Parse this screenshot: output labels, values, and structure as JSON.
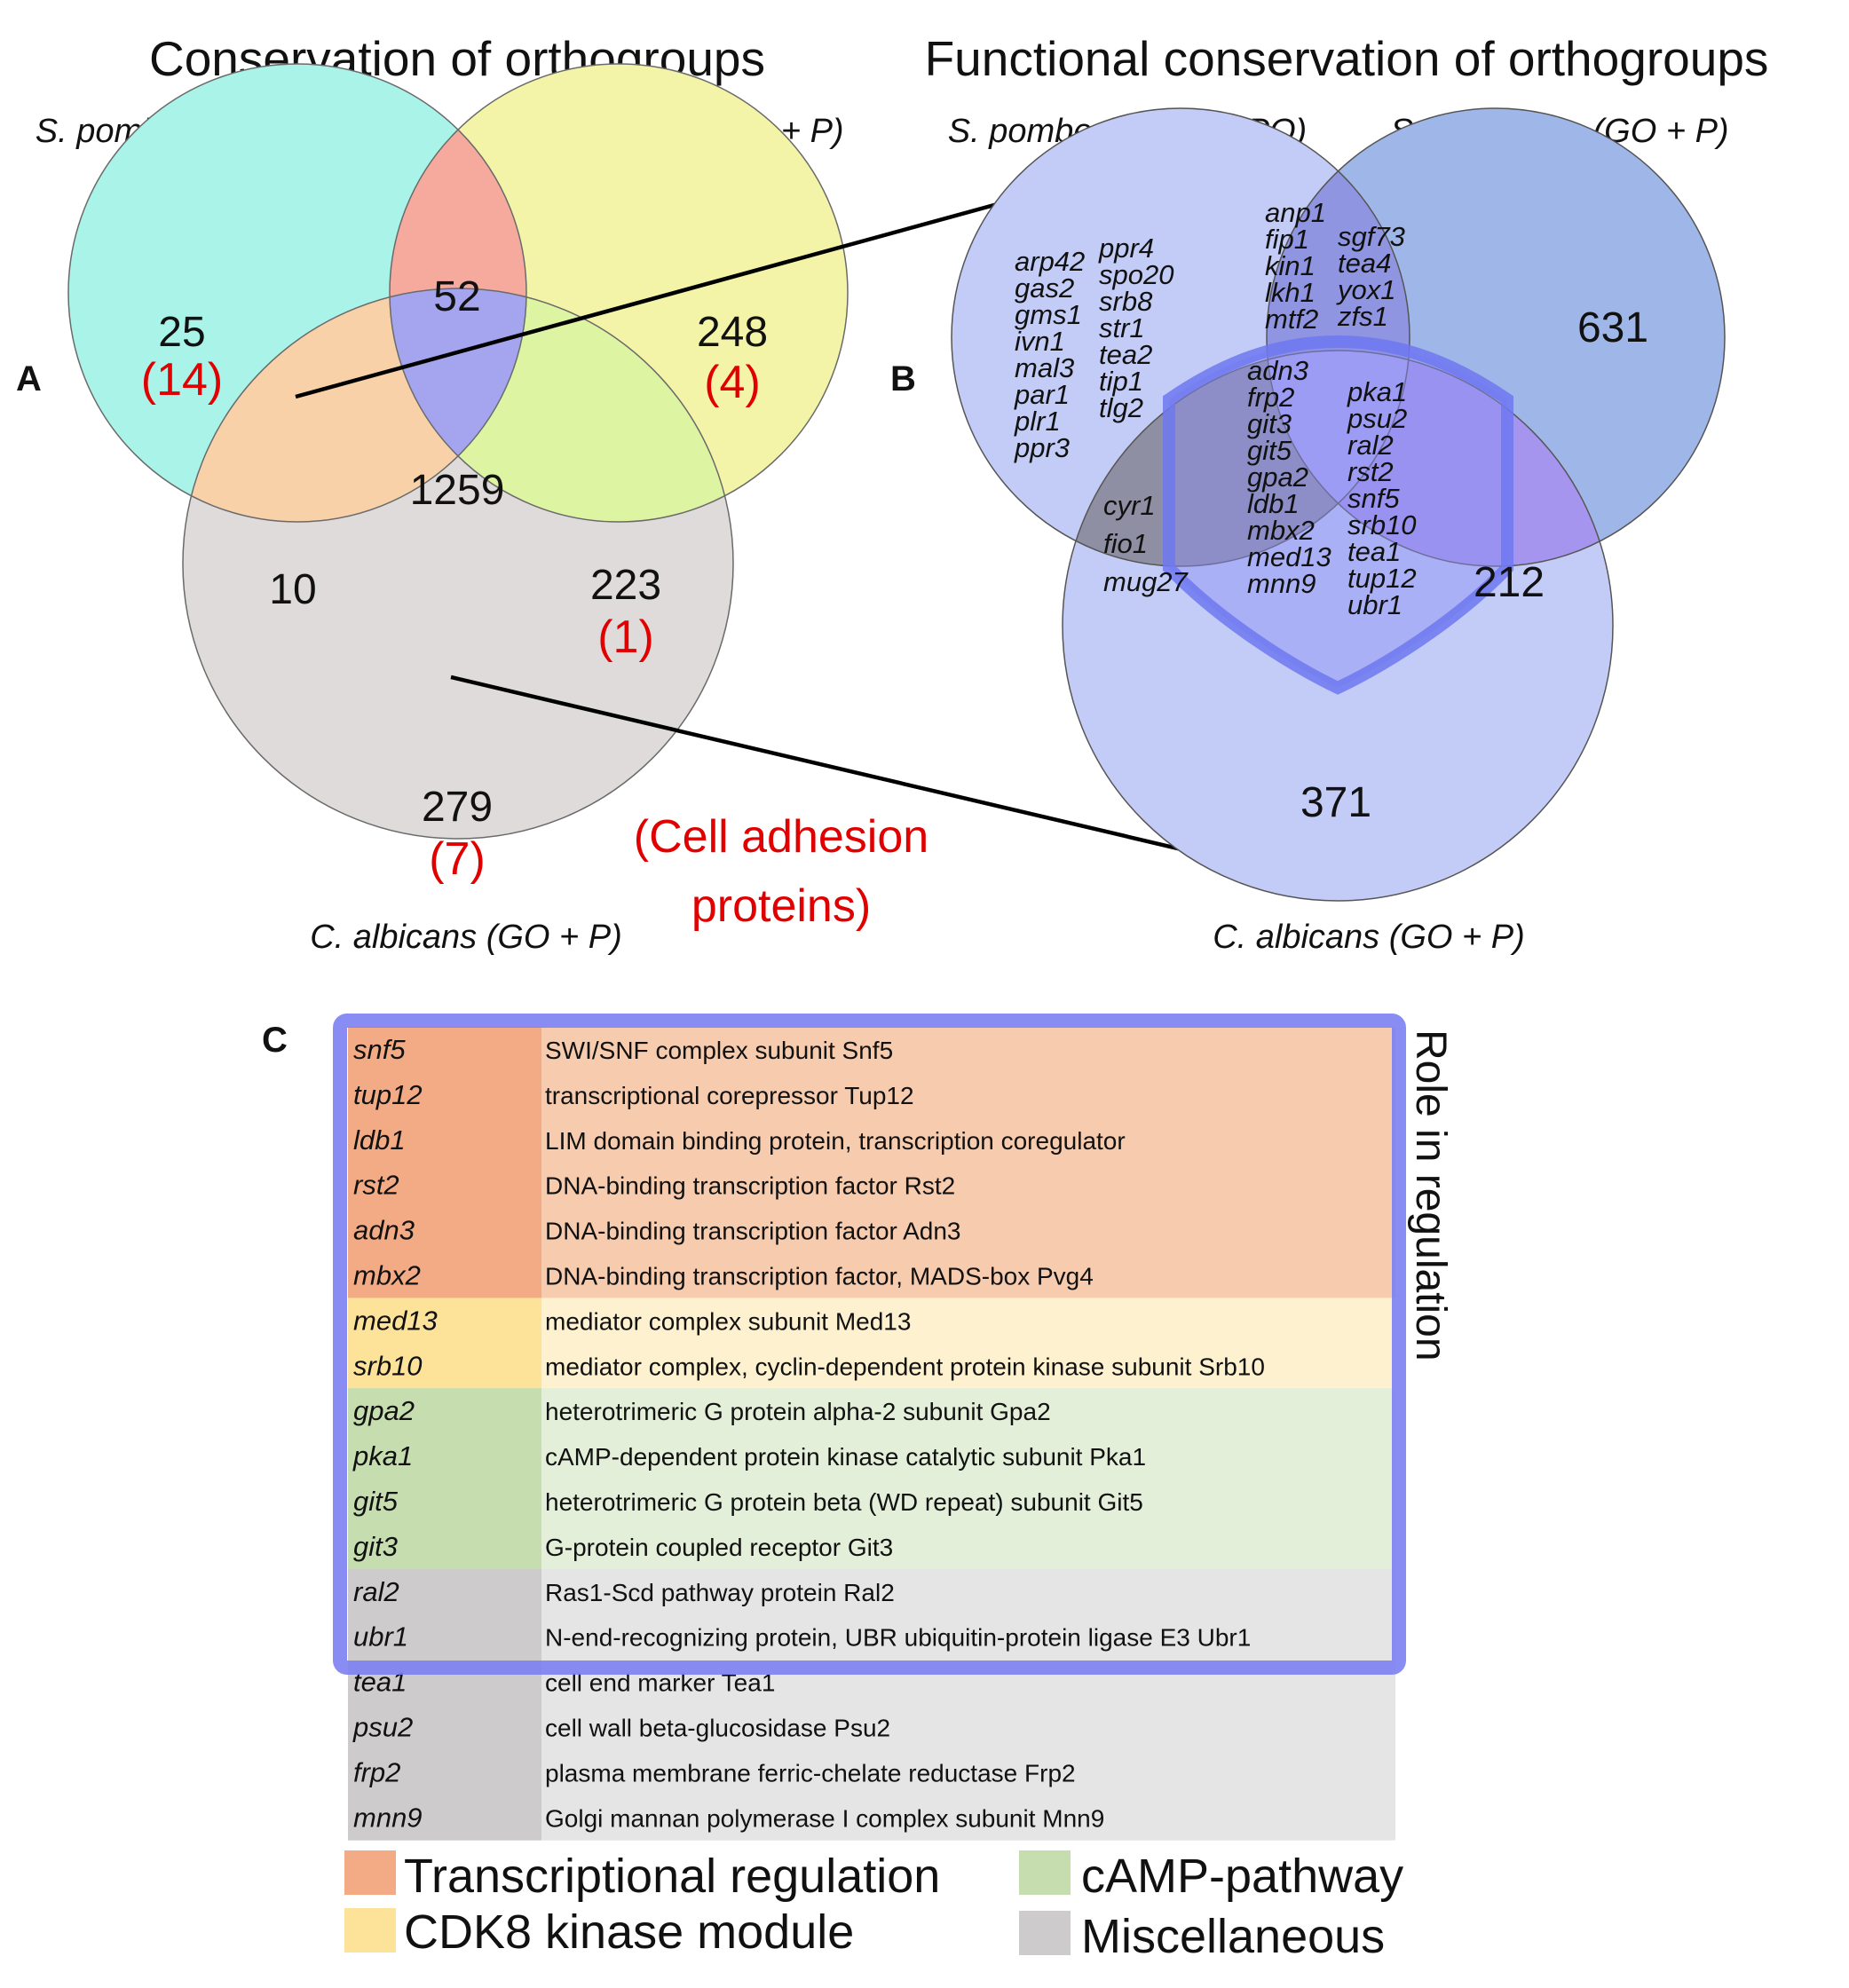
{
  "colors": {
    "pombe_only": "#a9f3e8",
    "cerevisiae_only": "#f4f4a8",
    "pombe_cerevisiae": "#f6aa9e",
    "all_three": "#a5a5ef",
    "pombe_albicans": "#f8d1a8",
    "cerevisiae_albicans": "#ddf5a3",
    "albicans_only": "#e0dbdb",
    "highlight": "#e00000",
    "venn_b_light": "#c3ccf7",
    "venn_b_mid": "#9fb6e9",
    "shield": "#6e78f0",
    "transcriptional": "#f3ab85",
    "transcriptional_light": "#f7cbad",
    "cdk8": "#fde39a",
    "cdk8_light": "#fef1cf",
    "camp": "#c6ddb0",
    "camp_light": "#e3efd9",
    "misc": "#cdcbcb",
    "misc_light": "#e5e5e5",
    "role_box": "#7b80f2"
  },
  "panel_a": {
    "label": "A",
    "title": "Conservation of orthogroups",
    "species": {
      "pombe": "S. pombe (GO + FYPO)",
      "cerevisiae": "S. cerevisiae (GO + P)",
      "albicans": "C. albicans (GO + P)"
    },
    "regions": {
      "pombe_only": {
        "count": "25",
        "adhesion": "(14)"
      },
      "pombe_cerevisiae": {
        "count": "52"
      },
      "cerevisiae_only": {
        "count": "248",
        "adhesion": "(4)"
      },
      "all_three": {
        "count": "1259"
      },
      "pombe_albicans": {
        "count": "10"
      },
      "cerevisiae_albicans": {
        "count": "223",
        "adhesion": "(1)"
      },
      "albicans_only": {
        "count": "279",
        "adhesion": "(7)"
      }
    },
    "note_line1": "(Cell adhesion",
    "note_line2": "proteins)"
  },
  "panel_b": {
    "label": "B",
    "title": "Functional conservation of orthogroups",
    "species": {
      "pombe": "S. pombe (GO + FYPO)",
      "cerevisiae": "S. cerevisiae (GO + P)",
      "albicans": "C. albicans (GO + P)"
    },
    "counts": {
      "cerevisiae_only": "631",
      "cerevisiae_albicans": "212",
      "albicans_only": "371"
    },
    "genes": {
      "pombe_col1": [
        "arp42",
        "gas2",
        "gms1",
        "ivn1",
        "mal3",
        "par1",
        "plr1",
        "ppr3"
      ],
      "pombe_col2": [
        "ppr4",
        "spo20",
        "srb8",
        "str1",
        "tea2",
        "tip1",
        "tlg2"
      ],
      "pc_col1": [
        "anp1",
        "fip1",
        "kin1",
        "lkh1",
        "mtf2"
      ],
      "pc_col2": [
        "sgf73",
        "tea4",
        "yox1",
        "zfs1"
      ],
      "pa": [
        "cyr1",
        "fio1",
        "mug27"
      ],
      "core_col1": [
        "adn3",
        "frp2",
        "git3",
        "git5",
        "gpa2",
        "ldb1",
        "mbx2",
        "med13",
        "mnn9"
      ],
      "core_col2": [
        "pka1",
        "psu2",
        "ral2",
        "rst2",
        "snf5",
        "srb10",
        "tea1",
        "tup12",
        "ubr1"
      ]
    }
  },
  "panel_c": {
    "label": "C",
    "side_label": "Role in regulation",
    "rows": [
      {
        "gene": "snf5",
        "desc": "SWI/SNF complex subunit Snf5",
        "cat": "transcriptional"
      },
      {
        "gene": "tup12",
        "desc": "transcriptional corepressor Tup12",
        "cat": "transcriptional"
      },
      {
        "gene": "ldb1",
        "desc": "LIM domain binding protein, transcription coregulator",
        "cat": "transcriptional"
      },
      {
        "gene": "rst2",
        "desc": "DNA-binding transcription factor Rst2",
        "cat": "transcriptional"
      },
      {
        "gene": "adn3",
        "desc": "DNA-binding transcription factor Adn3",
        "cat": "transcriptional"
      },
      {
        "gene": "mbx2",
        "desc": "DNA-binding transcription factor, MADS-box Pvg4",
        "cat": "transcriptional"
      },
      {
        "gene": "med13",
        "desc": "mediator complex subunit Med13",
        "cat": "cdk8"
      },
      {
        "gene": "srb10",
        "desc": "mediator complex, cyclin-dependent protein kinase subunit Srb10",
        "cat": "cdk8"
      },
      {
        "gene": "gpa2",
        "desc": "heterotrimeric G protein alpha-2 subunit Gpa2",
        "cat": "camp"
      },
      {
        "gene": "pka1",
        "desc": "cAMP-dependent protein kinase catalytic subunit Pka1",
        "cat": "camp"
      },
      {
        "gene": "git5",
        "desc": "heterotrimeric G protein beta (WD repeat) subunit Git5",
        "cat": "camp"
      },
      {
        "gene": "git3",
        "desc": "G-protein coupled receptor Git3",
        "cat": "camp"
      },
      {
        "gene": "ral2",
        "desc": "Ras1-Scd pathway protein Ral2",
        "cat": "misc"
      },
      {
        "gene": "ubr1",
        "desc": "N-end-recognizing protein, UBR ubiquitin-protein ligase E3 Ubr1",
        "cat": "misc"
      },
      {
        "gene": "tea1",
        "desc": "cell end marker Tea1",
        "cat": "misc"
      },
      {
        "gene": "psu2",
        "desc": "cell wall beta-glucosidase Psu2",
        "cat": "misc"
      },
      {
        "gene": "frp2",
        "desc": "plasma membrane ferric-chelate reductase Frp2",
        "cat": "misc"
      },
      {
        "gene": "mnn9",
        "desc": "Golgi mannan polymerase I complex subunit Mnn9",
        "cat": "misc"
      }
    ],
    "legend": {
      "transcriptional": "Transcriptional regulation",
      "cdk8": "CDK8 kinase module",
      "camp": "cAMP-pathway",
      "misc": "Miscellaneous"
    }
  }
}
